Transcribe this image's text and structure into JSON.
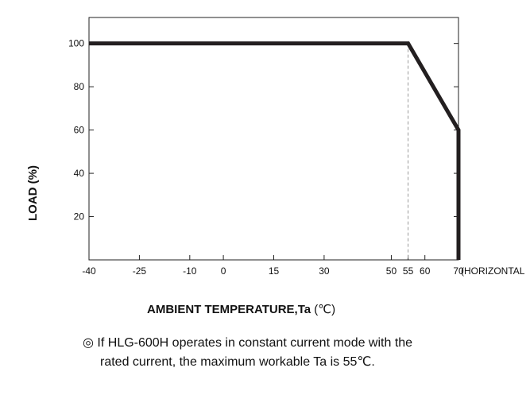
{
  "chart_data": {
    "type": "line",
    "x": [
      -40,
      55,
      70,
      70
    ],
    "series": [
      {
        "values": [
          100,
          100,
          60,
          0
        ],
        "color": "#231f20"
      }
    ],
    "reference_line_x": 55,
    "xlim": [
      -40,
      70
    ],
    "ylim": [
      0,
      112
    ],
    "x_ticks": [
      "-40",
      "-25",
      "-10",
      "0",
      "15",
      "30",
      "50",
      "55",
      "60",
      "70"
    ],
    "x_tick_values": [
      -40,
      -25,
      -10,
      0,
      15,
      30,
      50,
      55,
      60,
      70
    ],
    "x_axis_suffix": "(HORIZONTAL",
    "y_ticks": [
      "20",
      "40",
      "60",
      "80",
      "100"
    ],
    "y_tick_values": [
      20,
      40,
      60,
      80,
      100
    ],
    "ylabel": "LOAD (%)",
    "xlabel": "AMBIENT TEMPERATURE,Ta",
    "xlabel_unit": "(℃)",
    "grid": false
  },
  "note": {
    "symbol": "◎",
    "line1": "If HLG-600H operates in constant current mode with the",
    "line2": "rated current, the maximum workable Ta is 55℃."
  }
}
